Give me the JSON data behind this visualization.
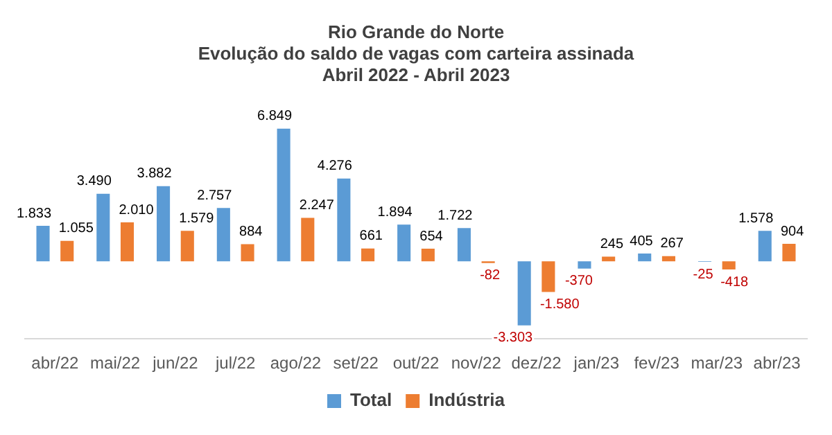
{
  "chart_data": {
    "type": "bar",
    "title": "Rio Grande do Norte\nEvolução do saldo de vagas com carteira assinada\nAbril 2022 - Abril 2023",
    "categories": [
      "abr/22",
      "mai/22",
      "jun/22",
      "jul/22",
      "ago/22",
      "set/22",
      "out/22",
      "nov/22",
      "dez/22",
      "jan/23",
      "fev/23",
      "mar/23",
      "abr/23"
    ],
    "series": [
      {
        "name": "Total",
        "color": "#5b9bd5",
        "values": [
          1833,
          3490,
          3882,
          2757,
          6849,
          4276,
          1894,
          1722,
          -3303,
          -370,
          405,
          -25,
          1578
        ],
        "value_labels": [
          "1.833",
          "3.490",
          "3.882",
          "2.757",
          "6.849",
          "4.276",
          "1.894",
          "1.722",
          "-3.303",
          "-370",
          "405",
          "-25",
          "1.578"
        ]
      },
      {
        "name": "Indústria",
        "color": "#ed7d31",
        "values": [
          1055,
          2010,
          1579,
          884,
          2247,
          661,
          654,
          -82,
          -1580,
          245,
          267,
          -418,
          904
        ],
        "value_labels": [
          "1.055",
          "2.010",
          "1.579",
          "884",
          "2.247",
          "661",
          "654",
          "-82",
          "-1.580",
          "245",
          "267",
          "-418",
          "904"
        ]
      }
    ],
    "legend": "bottom",
    "grid": false
  }
}
